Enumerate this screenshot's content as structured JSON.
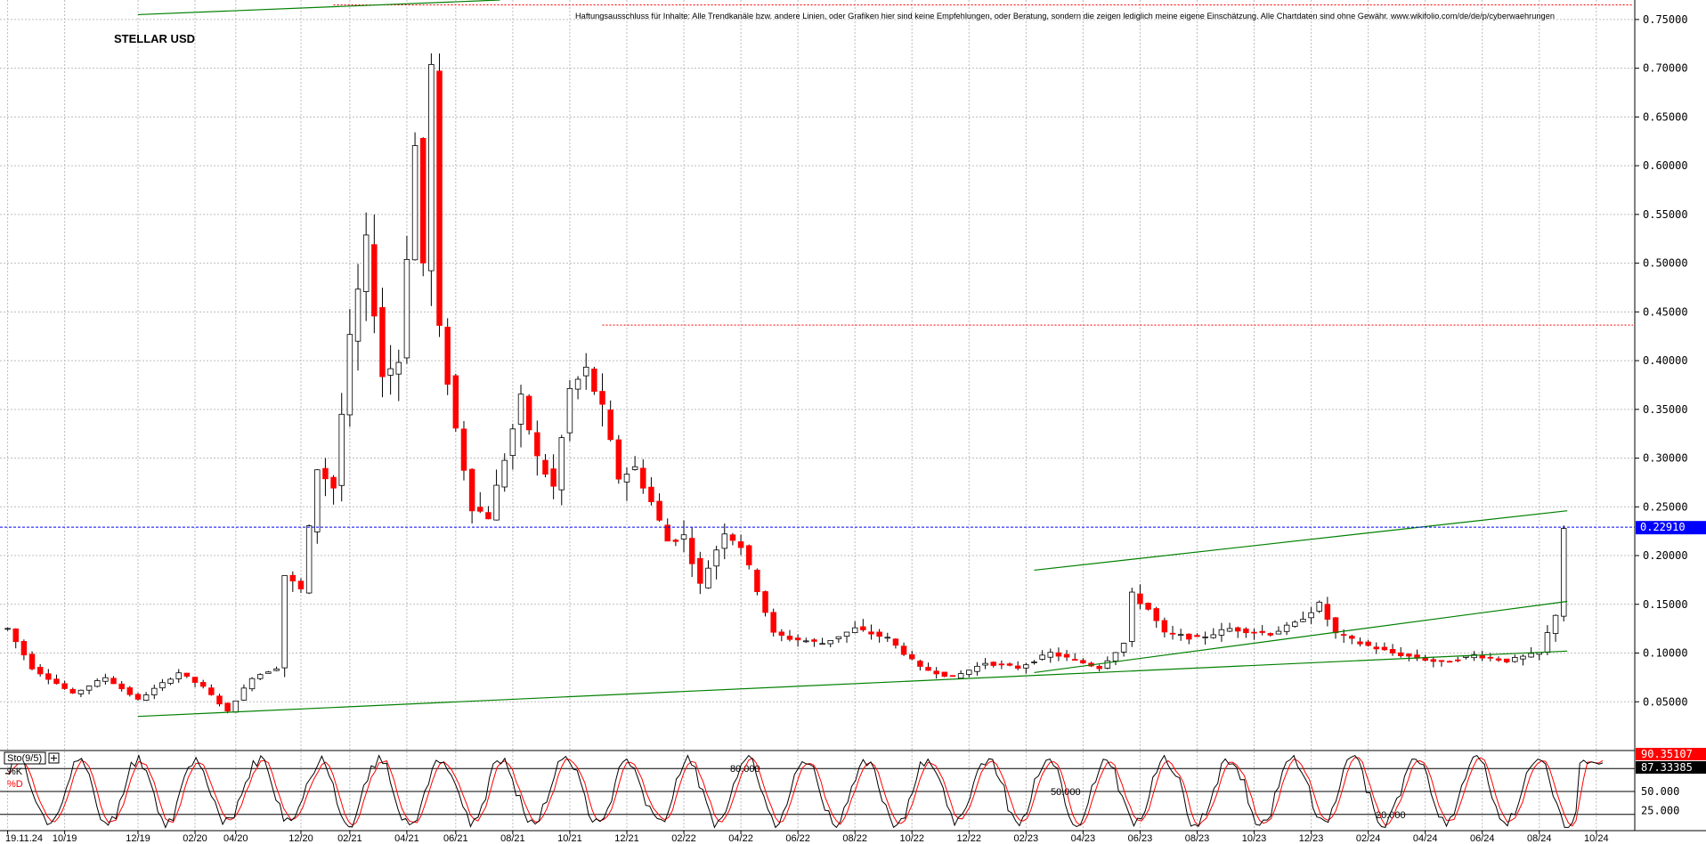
{
  "chart_data": [
    {
      "type": "candlestick",
      "title": "STELLAR USD",
      "disclaimer": "Haftungsausschluss für Inhalte: Alle Trendkanäle bzw. andere Linien, oder Grafiken hier sind keine Empfehlungen, oder Beratung, sondern die zeigen lediglich meine eigene Einschätzung. Alle Chartdaten sind ohne Gewähr. www.wikifolio.com/de/de/p/cyberwaehrungen",
      "y_axis_side": "right",
      "ylim": [
        0.0,
        0.77
      ],
      "y_ticks": [
        "0.75000",
        "0.70000",
        "0.65000",
        "0.60000",
        "0.55000",
        "0.50000",
        "0.45000",
        "0.40000",
        "0.35000",
        "0.30000",
        "0.25000",
        "0.20000",
        "0.15000",
        "0.10000",
        "0.05000"
      ],
      "y_tick_values": [
        0.75,
        0.7,
        0.65,
        0.6,
        0.55,
        0.5,
        0.45,
        0.4,
        0.35,
        0.3,
        0.25,
        0.2,
        0.15,
        0.1,
        0.05
      ],
      "current_price": 0.2291,
      "current_price_label": "0.22910",
      "grid": true,
      "x_tick_labels": [
        "19.11.24",
        "10/19",
        "12/19",
        "02/20",
        "04/20",
        "12/20",
        "02/21",
        "04/21",
        "06/21",
        "08/21",
        "10/21",
        "12/21",
        "02/22",
        "04/22",
        "06/22",
        "08/22",
        "10/22",
        "12/22",
        "02/23",
        "04/23",
        "06/23",
        "08/23",
        "10/23",
        "12/23",
        "02/24",
        "04/24",
        "06/24",
        "08/24",
        "10/24"
      ],
      "x_tick_index": [
        0,
        7,
        16,
        23,
        28,
        36,
        42,
        49,
        55,
        62,
        69,
        76,
        83,
        90,
        97,
        104,
        111,
        118,
        125,
        132,
        139,
        146,
        153,
        160,
        167,
        174,
        181,
        188,
        195
      ],
      "price_anchors": [
        [
          0,
          0.125
        ],
        [
          3,
          0.085
        ],
        [
          8,
          0.058
        ],
        [
          12,
          0.075
        ],
        [
          16,
          0.052
        ],
        [
          21,
          0.08
        ],
        [
          24,
          0.065
        ],
        [
          27,
          0.04
        ],
        [
          30,
          0.075
        ],
        [
          33,
          0.085
        ],
        [
          34,
          0.18
        ],
        [
          36,
          0.165
        ],
        [
          38,
          0.29
        ],
        [
          40,
          0.27
        ],
        [
          42,
          0.42
        ],
        [
          44,
          0.52
        ],
        [
          46,
          0.385
        ],
        [
          48,
          0.4
        ],
        [
          50,
          0.62
        ],
        [
          51,
          0.5
        ],
        [
          52,
          0.7
        ],
        [
          53,
          0.43
        ],
        [
          55,
          0.33
        ],
        [
          57,
          0.25
        ],
        [
          59,
          0.24
        ],
        [
          61,
          0.3
        ],
        [
          63,
          0.36
        ],
        [
          65,
          0.3
        ],
        [
          67,
          0.27
        ],
        [
          69,
          0.37
        ],
        [
          71,
          0.39
        ],
        [
          73,
          0.35
        ],
        [
          75,
          0.28
        ],
        [
          77,
          0.29
        ],
        [
          79,
          0.255
        ],
        [
          81,
          0.215
        ],
        [
          83,
          0.22
        ],
        [
          85,
          0.17
        ],
        [
          88,
          0.225
        ],
        [
          90,
          0.21
        ],
        [
          92,
          0.165
        ],
        [
          94,
          0.12
        ],
        [
          96,
          0.115
        ],
        [
          100,
          0.11
        ],
        [
          104,
          0.125
        ],
        [
          108,
          0.115
        ],
        [
          112,
          0.085
        ],
        [
          116,
          0.075
        ],
        [
          120,
          0.09
        ],
        [
          124,
          0.085
        ],
        [
          128,
          0.1
        ],
        [
          132,
          0.09
        ],
        [
          134,
          0.085
        ],
        [
          137,
          0.11
        ],
        [
          138,
          0.16
        ],
        [
          140,
          0.145
        ],
        [
          142,
          0.12
        ],
        [
          146,
          0.115
        ],
        [
          150,
          0.125
        ],
        [
          155,
          0.12
        ],
        [
          158,
          0.13
        ],
        [
          161,
          0.15
        ],
        [
          163,
          0.12
        ],
        [
          166,
          0.11
        ],
        [
          170,
          0.1
        ],
        [
          173,
          0.095
        ],
        [
          176,
          0.09
        ],
        [
          180,
          0.098
        ],
        [
          184,
          0.092
        ],
        [
          188,
          0.1
        ],
        [
          190,
          0.14
        ],
        [
          191,
          0.229
        ]
      ],
      "trendlines": [
        {
          "from": [
            16,
            0.035
          ],
          "to": [
            191,
            0.102
          ]
        },
        {
          "from": [
            126,
            0.08
          ],
          "to": [
            191,
            0.153
          ]
        },
        {
          "from": [
            126,
            0.185
          ],
          "to": [
            191,
            0.246
          ]
        },
        {
          "from": [
            16,
            0.755
          ],
          "to": [
            60,
            0.77
          ]
        }
      ],
      "resistance_levels": [
        0.4365,
        0.765
      ]
    },
    {
      "type": "line",
      "indicator": "Sto(9/5)",
      "ylim": [
        0,
        100
      ],
      "levels": [
        {
          "value": 80,
          "label": "80.000"
        },
        {
          "value": 50,
          "label": "50.000"
        },
        {
          "value": 20,
          "label": "20.000"
        }
      ],
      "y_ticks": [
        "50.000",
        "25.000"
      ],
      "series": [
        {
          "name": "%K",
          "color": "#000000",
          "last_value": 87.33385,
          "last_label": "87.33385"
        },
        {
          "name": "%D",
          "color": "#ff0000",
          "last_value": 90.35107,
          "last_label": "90.35107"
        }
      ]
    }
  ],
  "colors": {
    "up": "#ffffff",
    "down": "#ff0000",
    "outline": "#000000",
    "trend": "#008000",
    "current_price": "#0000ff",
    "resistance": "#ff0000"
  },
  "toolbar": {
    "add_icon": "plus-icon"
  }
}
